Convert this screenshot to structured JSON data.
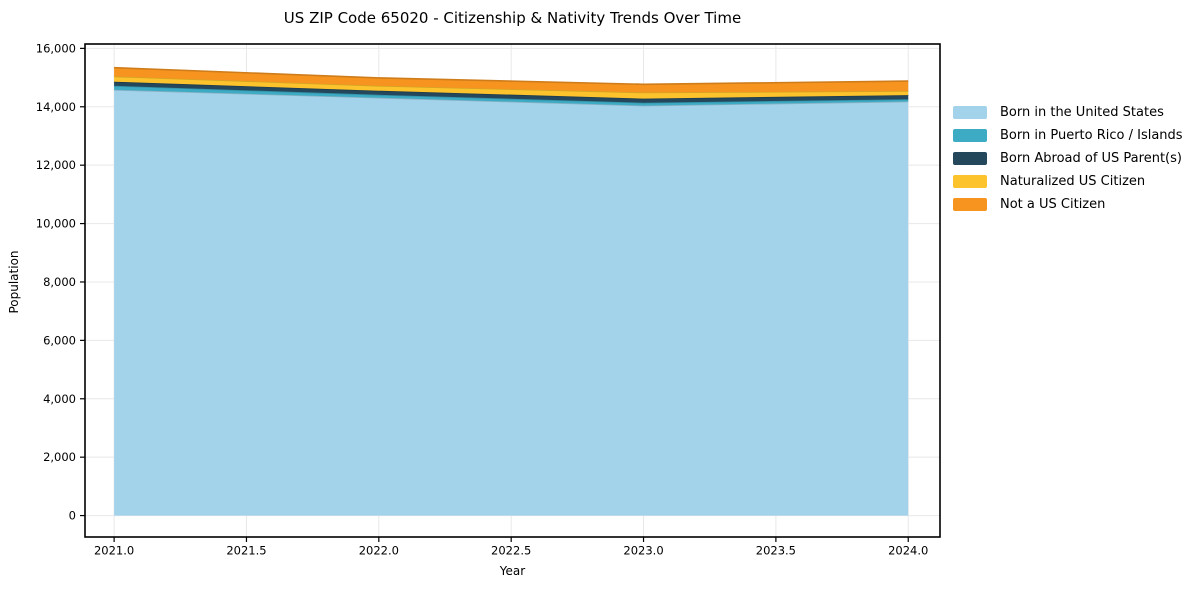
{
  "chart_data": {
    "type": "area",
    "stacked": true,
    "title": "US ZIP Code 65020 - Citizenship & Nativity Trends Over Time",
    "xlabel": "Year",
    "ylabel": "Population",
    "x": [
      2021,
      2022,
      2023,
      2024
    ],
    "series": [
      {
        "name": "Born in the United States",
        "color": "#a3d3ea",
        "values": [
          14580,
          14310,
          14040,
          14180
        ]
      },
      {
        "name": "Born in Puerto Rico / Islands",
        "color": "#3dabc4",
        "values": [
          140,
          100,
          100,
          80
        ]
      },
      {
        "name": "Born Abroad of US Parent(s)",
        "color": "#24475c",
        "values": [
          140,
          140,
          140,
          140
        ]
      },
      {
        "name": "Naturalized US Citizen",
        "color": "#fcc32d",
        "values": [
          180,
          170,
          210,
          140
        ]
      },
      {
        "name": "Not a US Citizen",
        "color": "#f7941f",
        "values": [
          300,
          270,
          280,
          340
        ]
      }
    ],
    "x_ticks": [
      {
        "value": 2021.0,
        "label": "2021.0"
      },
      {
        "value": 2021.5,
        "label": "2021.5"
      },
      {
        "value": 2022.0,
        "label": "2022.0"
      },
      {
        "value": 2022.5,
        "label": "2022.5"
      },
      {
        "value": 2023.0,
        "label": "2023.0"
      },
      {
        "value": 2023.5,
        "label": "2023.5"
      },
      {
        "value": 2024.0,
        "label": "2024.0"
      }
    ],
    "y_ticks": [
      {
        "value": 0,
        "label": "0"
      },
      {
        "value": 2000,
        "label": "2,000"
      },
      {
        "value": 4000,
        "label": "4,000"
      },
      {
        "value": 6000,
        "label": "6,000"
      },
      {
        "value": 8000,
        "label": "8,000"
      },
      {
        "value": 10000,
        "label": "10,000"
      },
      {
        "value": 12000,
        "label": "12,000"
      },
      {
        "value": 14000,
        "label": "14,000"
      },
      {
        "value": 16000,
        "label": "16,000"
      }
    ],
    "xlim": [
      2020.89,
      2024.12
    ],
    "ylim": [
      -734,
      16150
    ],
    "grid": true,
    "legend_position": "right"
  },
  "colors": {
    "background": "#ffffff",
    "grid": "#e8e8e8",
    "frame": "#000000",
    "text": "#000000"
  }
}
